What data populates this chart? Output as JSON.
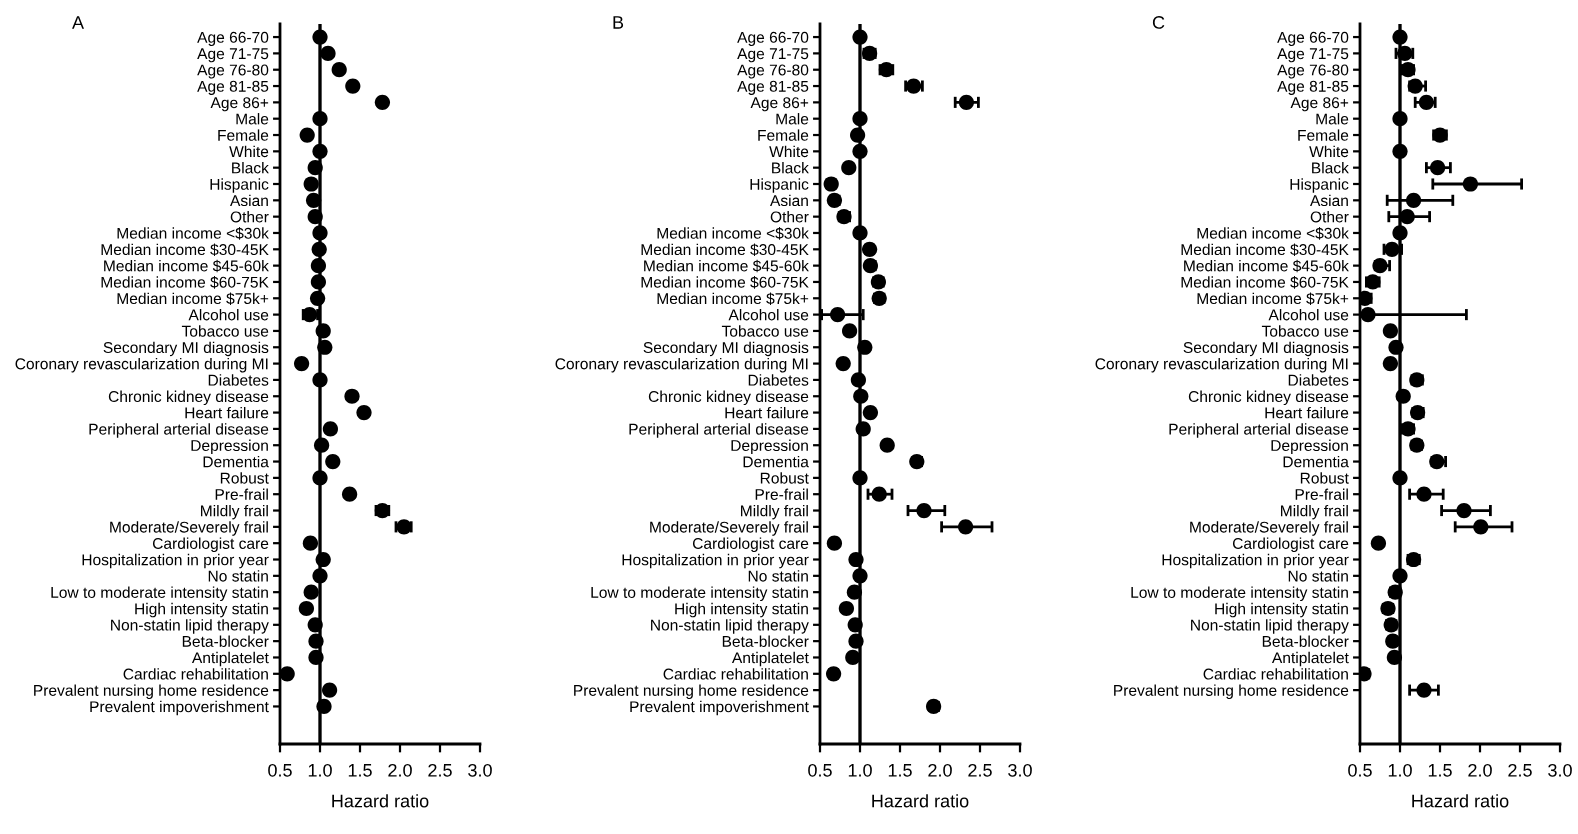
{
  "chart_data": [
    {
      "type": "scatter",
      "title": "A",
      "xlabel": "Hazard ratio",
      "marker": "circle",
      "orientation": "horizontal",
      "categories": [
        "Age 66-70",
        "Age 71-75",
        "Age 76-80",
        "Age 81-85",
        "Age 86+",
        "Male",
        "Female",
        "White",
        "Black",
        "Hispanic",
        "Asian",
        "Other",
        "Median income <$30k",
        "Median income $30-45K",
        "Median income $45-60k",
        "Median income $60-75K",
        "Median income $75k+",
        "Alcohol use",
        "Tobacco use",
        "Secondary MI diagnosis",
        "Coronary revascularization during MI",
        "Diabetes",
        "Chronic kidney disease",
        "Heart failure",
        "Peripheral arterial disease",
        "Depression",
        "Dementia",
        "Robust",
        "Pre-frail",
        "Mildly frail",
        "Moderate/Severely frail",
        "Cardiologist care",
        "Hospitalization in prior year",
        "No statin",
        "Low to moderate intensity statin",
        "High intensity statin",
        "Non-statin lipid therapy",
        "Beta-blocker",
        "Antiplatelet",
        "Cardiac rehabilitation",
        "Prevalent nursing home residence",
        "Prevalent impoverishment"
      ],
      "series": [
        {
          "color": "#000000",
          "values": [
            1.0,
            1.1,
            1.24,
            1.41,
            1.78,
            1.0,
            0.84,
            1.0,
            0.94,
            0.89,
            0.92,
            0.94,
            1.0,
            0.99,
            0.98,
            0.98,
            0.97,
            0.87,
            1.04,
            1.06,
            0.77,
            1.0,
            1.4,
            1.55,
            1.13,
            1.02,
            1.16,
            1.0,
            1.37,
            1.78,
            2.05,
            0.88,
            1.04,
            1.0,
            0.89,
            0.83,
            0.94,
            0.95,
            0.95,
            0.59,
            1.12,
            1.05
          ],
          "errors": [
            null,
            null,
            null,
            null,
            null,
            null,
            null,
            null,
            null,
            null,
            null,
            null,
            null,
            null,
            null,
            null,
            null,
            [
              0.79,
              0.97
            ],
            null,
            null,
            null,
            null,
            null,
            null,
            null,
            null,
            null,
            null,
            null,
            [
              1.7,
              1.86
            ],
            [
              1.95,
              2.14
            ],
            null,
            null,
            null,
            null,
            null,
            null,
            null,
            null,
            null,
            null,
            null
          ]
        }
      ],
      "xlim": [
        0.5,
        3.0
      ],
      "xticks": [
        {
          "value": 0.5,
          "label": "0.5"
        },
        {
          "value": 1.0,
          "label": "1.0"
        },
        {
          "value": 1.5,
          "label": "1.5"
        },
        {
          "value": 2.0,
          "label": "2.0"
        },
        {
          "value": 2.5,
          "label": "2.5"
        },
        {
          "value": 3.0,
          "label": "3.0"
        }
      ],
      "ref_lines": [
        {
          "axis": "x",
          "value": 1.0,
          "color": "#000000"
        }
      ]
    },
    {
      "type": "scatter",
      "title": "B",
      "xlabel": "Hazard ratio",
      "marker": "circle",
      "orientation": "horizontal",
      "categories": [
        "Age 66-70",
        "Age 71-75",
        "Age 76-80",
        "Age 81-85",
        "Age 86+",
        "Male",
        "Female",
        "White",
        "Black",
        "Hispanic",
        "Asian",
        "Other",
        "Median income <$30k",
        "Median income $30-45K",
        "Median income $45-60k",
        "Median income $60-75K",
        "Median income $75k+",
        "Alcohol use",
        "Tobacco use",
        "Secondary MI diagnosis",
        "Coronary revascularization during MI",
        "Diabetes",
        "Chronic kidney disease",
        "Heart failure",
        "Peripheral arterial disease",
        "Depression",
        "Dementia",
        "Robust",
        "Pre-frail",
        "Mildly frail",
        "Moderate/Severely frail",
        "Cardiologist care",
        "Hospitalization in prior year",
        "No statin",
        "Low to moderate intensity statin",
        "High intensity statin",
        "Non-statin lipid therapy",
        "Beta-blocker",
        "Antiplatelet",
        "Cardiac rehabilitation",
        "Prevalent nursing home residence",
        "Prevalent impoverishment"
      ],
      "series": [
        {
          "color": "#000000",
          "values": [
            1.0,
            1.12,
            1.33,
            1.67,
            2.33,
            1.0,
            0.97,
            1.0,
            0.86,
            0.64,
            0.68,
            0.8,
            1.0,
            1.12,
            1.13,
            1.23,
            1.24,
            0.72,
            0.87,
            1.06,
            0.79,
            0.98,
            1.01,
            1.13,
            1.04,
            1.34,
            1.71,
            1.0,
            1.24,
            1.8,
            2.32,
            0.68,
            0.95,
            1.0,
            0.93,
            0.83,
            0.94,
            0.95,
            0.91,
            0.67,
            null,
            1.92
          ],
          "errors": [
            null,
            [
              1.05,
              1.19
            ],
            [
              1.25,
              1.41
            ],
            [
              1.57,
              1.78
            ],
            [
              2.19,
              2.48
            ],
            null,
            null,
            null,
            null,
            [
              0.59,
              0.69
            ],
            [
              0.63,
              0.74
            ],
            [
              0.74,
              0.87
            ],
            null,
            [
              1.07,
              1.17
            ],
            [
              1.08,
              1.19
            ],
            [
              1.17,
              1.29
            ],
            [
              1.18,
              1.3
            ],
            [
              0.52,
              1.04
            ],
            null,
            null,
            null,
            null,
            null,
            null,
            null,
            null,
            [
              1.66,
              1.77
            ],
            null,
            [
              1.1,
              1.4
            ],
            [
              1.6,
              2.06
            ],
            [
              2.02,
              2.65
            ],
            null,
            null,
            null,
            null,
            null,
            null,
            null,
            null,
            [
              0.62,
              0.72
            ],
            null,
            [
              1.87,
              1.98
            ]
          ]
        }
      ],
      "xlim": [
        0.5,
        3.0
      ],
      "xticks": [
        {
          "value": 0.5,
          "label": "0.5"
        },
        {
          "value": 1.0,
          "label": "1.0"
        },
        {
          "value": 1.5,
          "label": "1.5"
        },
        {
          "value": 2.0,
          "label": "2.0"
        },
        {
          "value": 2.5,
          "label": "2.5"
        },
        {
          "value": 3.0,
          "label": "3.0"
        }
      ],
      "ref_lines": [
        {
          "axis": "x",
          "value": 1.0,
          "color": "#000000"
        }
      ]
    },
    {
      "type": "scatter",
      "title": "C",
      "xlabel": "Hazard ratio",
      "marker": "circle",
      "orientation": "horizontal",
      "categories": [
        "Age 66-70",
        "Age 71-75",
        "Age 76-80",
        "Age 81-85",
        "Age 86+",
        "Male",
        "Female",
        "White",
        "Black",
        "Hispanic",
        "Asian",
        "Other",
        "Median income <$30k",
        "Median income $30-45K",
        "Median income $45-60k",
        "Median income $60-75K",
        "Median income $75k+",
        "Alcohol use",
        "Tobacco use",
        "Secondary MI diagnosis",
        "Coronary revascularization during MI",
        "Diabetes",
        "Chronic kidney disease",
        "Heart failure",
        "Peripheral arterial disease",
        "Depression",
        "Dementia",
        "Robust",
        "Pre-frail",
        "Mildly frail",
        "Moderate/Severely frail",
        "Cardiologist care",
        "Hospitalization in prior year",
        "No statin",
        "Low to moderate intensity statin",
        "High intensity statin",
        "Non-statin lipid therapy",
        "Beta-blocker",
        "Antiplatelet",
        "Cardiac rehabilitation",
        "Prevalent nursing home residence"
      ],
      "series": [
        {
          "color": "#000000",
          "values": [
            1.0,
            1.06,
            1.1,
            1.19,
            1.33,
            1.0,
            1.5,
            1.0,
            1.47,
            1.88,
            1.17,
            1.09,
            1.0,
            0.9,
            0.75,
            0.66,
            0.56,
            0.6,
            0.88,
            0.95,
            0.88,
            1.21,
            1.04,
            1.22,
            1.1,
            1.21,
            1.46,
            1.0,
            1.3,
            1.8,
            2.01,
            0.73,
            1.17,
            1.0,
            0.94,
            0.85,
            0.89,
            0.91,
            0.93,
            0.55,
            1.3
          ],
          "errors": [
            null,
            [
              0.95,
              1.16
            ],
            [
              1.03,
              1.17
            ],
            [
              1.12,
              1.32
            ],
            [
              1.19,
              1.44
            ],
            null,
            [
              1.42,
              1.58
            ],
            null,
            [
              1.33,
              1.63
            ],
            [
              1.41,
              2.52
            ],
            [
              0.84,
              1.66
            ],
            [
              0.86,
              1.37
            ],
            null,
            [
              0.8,
              1.02
            ],
            [
              0.69,
              0.87
            ],
            [
              0.58,
              0.74
            ],
            [
              0.5,
              0.64
            ],
            [
              0.55,
              1.83
            ],
            null,
            null,
            null,
            [
              1.15,
              1.28
            ],
            null,
            [
              1.16,
              1.29
            ],
            [
              1.02,
              1.17
            ],
            [
              1.15,
              1.27
            ],
            [
              1.4,
              1.57
            ],
            null,
            [
              1.12,
              1.54
            ],
            [
              1.52,
              2.13
            ],
            [
              1.69,
              2.4
            ],
            null,
            [
              1.1,
              1.24
            ],
            null,
            [
              0.88,
              1.0
            ],
            [
              0.79,
              0.91
            ],
            [
              0.83,
              0.95
            ],
            [
              0.86,
              0.96
            ],
            [
              0.88,
              0.97
            ],
            [
              0.5,
              0.61
            ],
            [
              1.12,
              1.48
            ]
          ]
        }
      ],
      "xlim": [
        0.5,
        3.0
      ],
      "xticks": [
        {
          "value": 0.5,
          "label": "0.5"
        },
        {
          "value": 1.0,
          "label": "1.0"
        },
        {
          "value": 1.5,
          "label": "1.5"
        },
        {
          "value": 2.0,
          "label": "2.0"
        },
        {
          "value": 2.5,
          "label": "2.5"
        },
        {
          "value": 3.0,
          "label": "3.0"
        }
      ],
      "ref_lines": [
        {
          "axis": "x",
          "value": 1.0,
          "color": "#000000"
        }
      ]
    }
  ]
}
